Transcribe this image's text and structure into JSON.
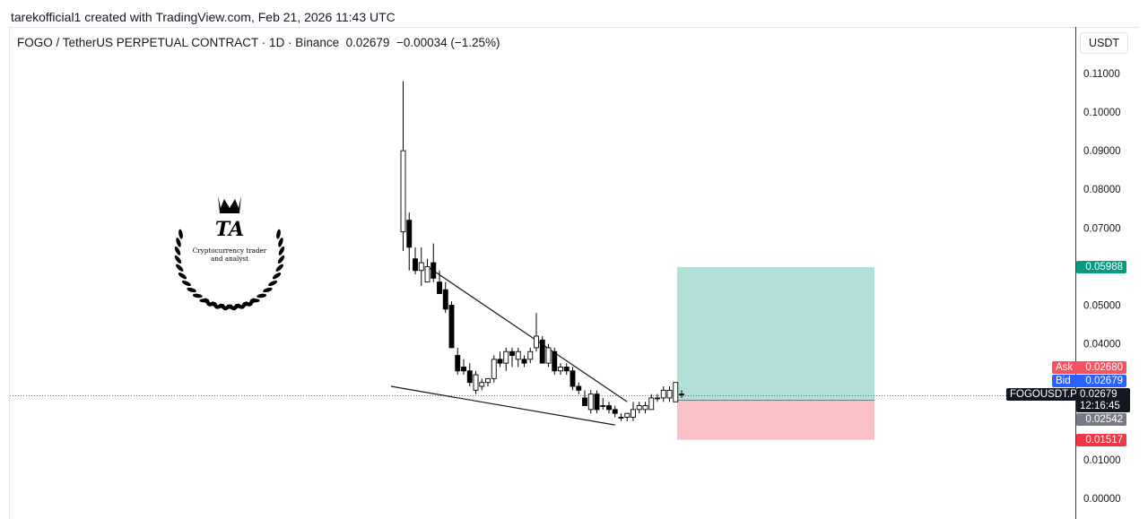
{
  "attribution": "tarekofficial1 created with TradingView.com, Feb 21, 2026 11:43 UTC",
  "header": {
    "symbol": "FOGO / TetherUS PERPETUAL CONTRACT · 1D · Binance",
    "price": "0.02679",
    "change": "−0.00034 (−1.25%)",
    "currency_button": "USDT"
  },
  "logo": {
    "initials": "TA",
    "line1": "Cryptocurrency trader",
    "line2": "and analyst"
  },
  "price_tags": {
    "ask_label": "Ask",
    "ask_value": "0.02680",
    "bid_label": "Bid",
    "bid_value": "0.02679",
    "symbol_label": "FOGOUSDT.P",
    "last_value": "0.02679",
    "countdown": "12:16:45",
    "entry_value": "0.02542",
    "target_value": "0.05988",
    "stop_value": "0.01517"
  },
  "colors": {
    "up": "#ffffff",
    "down": "#000000",
    "target_zone": "#b2dfd8",
    "stop_zone": "#f8c1c6",
    "target_tag": "#089981",
    "stop_tag": "#f23645",
    "ask_tag": "#f7525f",
    "bid_tag": "#2962ff",
    "entry_tag": "#787b86",
    "last_tag": "#131722"
  },
  "chart_data": {
    "type": "candlestick",
    "ylim": [
      0.0,
      0.115
    ],
    "y_ticks": [
      "0.11000",
      "0.10000",
      "0.09000",
      "0.08000",
      "0.07000",
      "0.06000",
      "0.05000",
      "0.04000",
      "0.03000",
      "0.02000",
      "0.01000",
      "0.00000"
    ],
    "candles": [
      {
        "o": 0.069,
        "h": 0.108,
        "l": 0.064,
        "c": 0.09
      },
      {
        "o": 0.072,
        "h": 0.074,
        "l": 0.059,
        "c": 0.065
      },
      {
        "o": 0.062,
        "h": 0.065,
        "l": 0.058,
        "c": 0.059
      },
      {
        "o": 0.059,
        "h": 0.065,
        "l": 0.055,
        "c": 0.061
      },
      {
        "o": 0.056,
        "h": 0.062,
        "l": 0.056,
        "c": 0.06
      },
      {
        "o": 0.061,
        "h": 0.066,
        "l": 0.056,
        "c": 0.057
      },
      {
        "o": 0.056,
        "h": 0.059,
        "l": 0.053,
        "c": 0.053
      },
      {
        "o": 0.054,
        "h": 0.056,
        "l": 0.048,
        "c": 0.049
      },
      {
        "o": 0.05,
        "h": 0.051,
        "l": 0.039,
        "c": 0.039
      },
      {
        "o": 0.037,
        "h": 0.039,
        "l": 0.032,
        "c": 0.033
      },
      {
        "o": 0.034,
        "h": 0.036,
        "l": 0.032,
        "c": 0.033
      },
      {
        "o": 0.033,
        "h": 0.035,
        "l": 0.029,
        "c": 0.03
      },
      {
        "o": 0.028,
        "h": 0.033,
        "l": 0.027,
        "c": 0.032
      },
      {
        "o": 0.029,
        "h": 0.031,
        "l": 0.028,
        "c": 0.03
      },
      {
        "o": 0.03,
        "h": 0.031,
        "l": 0.029,
        "c": 0.031
      },
      {
        "o": 0.031,
        "h": 0.037,
        "l": 0.03,
        "c": 0.036
      },
      {
        "o": 0.036,
        "h": 0.038,
        "l": 0.034,
        "c": 0.035
      },
      {
        "o": 0.035,
        "h": 0.039,
        "l": 0.033,
        "c": 0.038
      },
      {
        "o": 0.038,
        "h": 0.039,
        "l": 0.034,
        "c": 0.037
      },
      {
        "o": 0.036,
        "h": 0.039,
        "l": 0.034,
        "c": 0.038
      },
      {
        "o": 0.036,
        "h": 0.037,
        "l": 0.034,
        "c": 0.035
      },
      {
        "o": 0.036,
        "h": 0.039,
        "l": 0.035,
        "c": 0.038
      },
      {
        "o": 0.039,
        "h": 0.048,
        "l": 0.038,
        "c": 0.042
      },
      {
        "o": 0.041,
        "h": 0.042,
        "l": 0.035,
        "c": 0.035
      },
      {
        "o": 0.035,
        "h": 0.04,
        "l": 0.034,
        "c": 0.039
      },
      {
        "o": 0.038,
        "h": 0.039,
        "l": 0.032,
        "c": 0.033
      },
      {
        "o": 0.033,
        "h": 0.035,
        "l": 0.032,
        "c": 0.034
      },
      {
        "o": 0.034,
        "h": 0.035,
        "l": 0.032,
        "c": 0.033
      },
      {
        "o": 0.033,
        "h": 0.034,
        "l": 0.028,
        "c": 0.029
      },
      {
        "o": 0.029,
        "h": 0.03,
        "l": 0.027,
        "c": 0.028
      },
      {
        "o": 0.026,
        "h": 0.028,
        "l": 0.024,
        "c": 0.024
      },
      {
        "o": 0.023,
        "h": 0.028,
        "l": 0.022,
        "c": 0.027
      },
      {
        "o": 0.027,
        "h": 0.028,
        "l": 0.022,
        "c": 0.023
      },
      {
        "o": 0.024,
        "h": 0.026,
        "l": 0.023,
        "c": 0.024
      },
      {
        "o": 0.024,
        "h": 0.025,
        "l": 0.022,
        "c": 0.023
      },
      {
        "o": 0.023,
        "h": 0.024,
        "l": 0.021,
        "c": 0.022
      },
      {
        "o": 0.021,
        "h": 0.022,
        "l": 0.02,
        "c": 0.021
      },
      {
        "o": 0.021,
        "h": 0.022,
        "l": 0.02,
        "c": 0.022
      },
      {
        "o": 0.021,
        "h": 0.025,
        "l": 0.02,
        "c": 0.023
      },
      {
        "o": 0.023,
        "h": 0.025,
        "l": 0.022,
        "c": 0.024
      },
      {
        "o": 0.023,
        "h": 0.025,
        "l": 0.022,
        "c": 0.024
      },
      {
        "o": 0.023,
        "h": 0.027,
        "l": 0.023,
        "c": 0.026
      },
      {
        "o": 0.026,
        "h": 0.027,
        "l": 0.025,
        "c": 0.026
      },
      {
        "o": 0.026,
        "h": 0.029,
        "l": 0.025,
        "c": 0.028
      },
      {
        "o": 0.026,
        "h": 0.029,
        "l": 0.025,
        "c": 0.028
      },
      {
        "o": 0.025,
        "h": 0.03,
        "l": 0.025,
        "c": 0.03
      },
      {
        "o": 0.027,
        "h": 0.028,
        "l": 0.026,
        "c": 0.0268
      }
    ],
    "trendlines": [
      {
        "from": {
          "bar": 4,
          "price": 0.06
        },
        "to": {
          "bar": 37,
          "price": 0.025
        }
      },
      {
        "from": {
          "bar": -2,
          "price": 0.029
        },
        "to": {
          "bar": 35,
          "price": 0.019
        }
      }
    ],
    "position": {
      "entry": 0.02542,
      "target": 0.05988,
      "stop": 0.01517,
      "start_bar": 46,
      "end_bar": 77
    },
    "last_price": 0.02679
  }
}
